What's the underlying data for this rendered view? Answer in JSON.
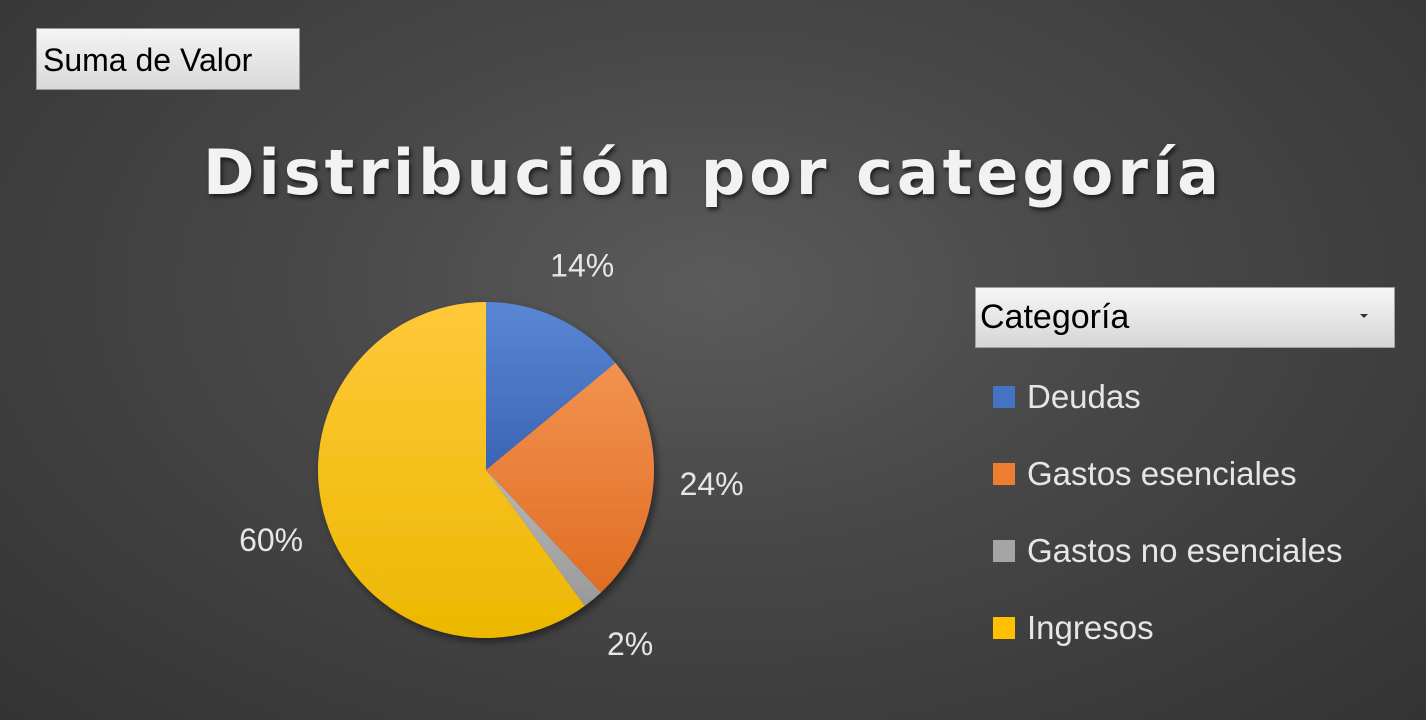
{
  "field_button": {
    "label": "Suma de Valor"
  },
  "legend_filter": {
    "label": "Categoría"
  },
  "chart_data": {
    "type": "pie",
    "title": "Distribución por categoría",
    "categories": [
      "Deudas",
      "Gastos esenciales",
      "Gastos no esenciales",
      "Ingresos"
    ],
    "values": [
      14,
      24,
      2,
      60
    ],
    "labels": [
      "14%",
      "24%",
      "2%",
      "60%"
    ],
    "colors": [
      "#4472c4",
      "#ed7d31",
      "#a5a5a5",
      "#ffc000"
    ],
    "legend_position": "right",
    "start_angle_deg": 0,
    "direction": "clockwise"
  }
}
